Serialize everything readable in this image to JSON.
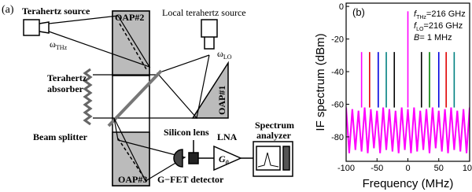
{
  "panel_a": {
    "label": "(a)",
    "thz_source": "Terahertz source",
    "omega": "ω",
    "thz_sub": "THz",
    "oap2": "OAP#2",
    "local_source": "Local terahertz source",
    "omega_lo": "ω",
    "lo_sub": "LO",
    "absorber_line1": "Terahertz",
    "absorber_line2": "absorber",
    "oap1": "OAP#1",
    "beam_splitter": "Beam splitter",
    "silicon_lens": "Silicon lens",
    "lna": "LNA",
    "analyzer_line1": "Spectrum",
    "analyzer_line2": "analyzer",
    "gain": "G",
    "gain_sub": "0",
    "oap3": "OAP#3",
    "detector": "G−FET detector"
  },
  "chart_data": {
    "type": "line",
    "panel_label": "(b)",
    "annotations": [
      [
        "f",
        "THz",
        "=216 GHz"
      ],
      [
        "f",
        "LO",
        "=216 GHz"
      ],
      [
        "B",
        "= 1 MHz"
      ]
    ],
    "xlabel": "Frequency (MHz)",
    "ylabel": "IF spectrum (dBm)",
    "xlim": [
      -100,
      100
    ],
    "xticks": [
      -100,
      -50,
      0,
      50,
      100
    ],
    "ylim": [
      -95,
      2
    ],
    "yticks": [
      -80,
      -60,
      -40,
      -20,
      0
    ],
    "series": [
      {
        "color": "#ff00ff",
        "x": [
          -100,
          -95,
          -90,
          -85,
          -80,
          -75,
          -70,
          -65,
          -60,
          -55,
          -50,
          -45,
          -40,
          -35,
          -30,
          -25,
          -20,
          -15,
          -10,
          -5,
          0,
          5,
          10,
          15,
          20,
          25,
          30,
          35,
          40,
          45,
          50,
          55,
          60,
          65,
          70,
          75,
          80,
          85,
          90,
          95,
          100
        ],
        "values": [
          -62,
          -90,
          -63,
          -88,
          -64,
          -89,
          -62,
          -90,
          -63,
          -87,
          -64,
          -90,
          -62,
          -88,
          -63,
          -89,
          -64,
          -90,
          -62,
          -88,
          -63,
          -90,
          -62,
          -89,
          -64,
          -88,
          -63,
          -90,
          -62,
          -87,
          -64,
          -89,
          -63,
          -90,
          -62,
          -88,
          -64,
          -89,
          -63,
          -90,
          -62
        ]
      },
      {
        "color": "#ff00ff",
        "x": [
          -75,
          -75
        ],
        "values": [
          -62,
          -28
        ]
      },
      {
        "color": "#e00000",
        "x": [
          -62,
          -62
        ],
        "values": [
          -62,
          -28
        ]
      },
      {
        "color": "#0000e0",
        "x": [
          -48,
          -48
        ],
        "values": [
          -62,
          -28
        ]
      },
      {
        "color": "#008080",
        "x": [
          -35,
          -35
        ],
        "values": [
          -62,
          -28
        ]
      },
      {
        "color": "#000000",
        "x": [
          -22,
          -22
        ],
        "values": [
          -62,
          -28
        ]
      },
      {
        "color": "#ff00ff",
        "x": [
          0,
          0
        ],
        "values": [
          -62,
          -3
        ]
      },
      {
        "color": "#000000",
        "x": [
          22,
          22
        ],
        "values": [
          -62,
          -28
        ]
      },
      {
        "color": "#008000",
        "x": [
          35,
          35
        ],
        "values": [
          -62,
          -28
        ]
      },
      {
        "color": "#0000e0",
        "x": [
          50,
          50
        ],
        "values": [
          -62,
          -28
        ]
      },
      {
        "color": "#e00000",
        "x": [
          62,
          62
        ],
        "values": [
          -62,
          -28
        ]
      },
      {
        "color": "#008080",
        "x": [
          75,
          75
        ],
        "values": [
          -62,
          -28
        ]
      }
    ]
  }
}
